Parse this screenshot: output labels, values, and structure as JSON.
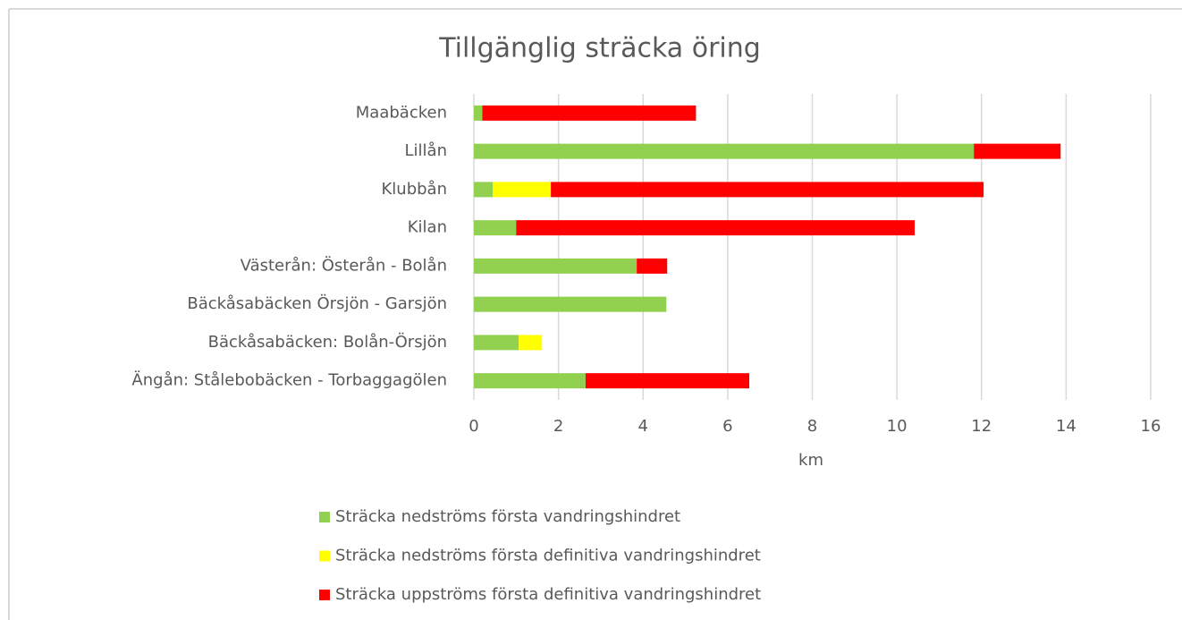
{
  "chart_data": {
    "type": "stacked_barh",
    "title": "Tillgänglig sträcka öring",
    "xlabel": "km",
    "categories": [
      "Maabäcken",
      "Lillån",
      "Klubbån",
      "Kilan",
      "Västerån: Österån - Bolån",
      "Bäckåsabäcken Örsjön - Garsjön",
      "Bäckåsabäcken: Bolån-Örsjön",
      "Ängån: Stålebobäcken - Torbaggagölen"
    ],
    "series": [
      {
        "name": "Sträcka nedströms första vandringshindret",
        "color": "#92d050",
        "values": [
          0.2,
          11.82,
          0.45,
          1.0,
          3.85,
          4.55,
          1.06,
          2.64
        ]
      },
      {
        "name": "Sträcka nedströms första definitiva vandringshindret",
        "color": "#ffff00",
        "values": [
          0,
          0,
          1.37,
          0,
          0,
          0,
          0.55,
          0
        ]
      },
      {
        "name": "Sträcka uppströms första definitiva vandringshindret",
        "color": "#ff0000",
        "values": [
          5.05,
          2.05,
          10.23,
          9.42,
          0.72,
          0,
          0,
          3.87
        ]
      }
    ],
    "xlim": [
      0,
      16
    ],
    "xticks": [
      0,
      2,
      4,
      6,
      8,
      10,
      12,
      14,
      16
    ],
    "grid": true,
    "legend": "bottom"
  }
}
